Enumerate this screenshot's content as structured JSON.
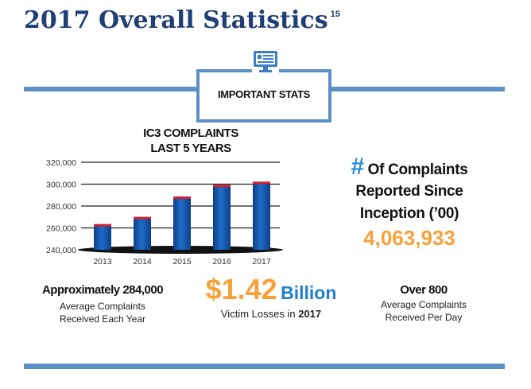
{
  "title": "2017 Overall Statistics",
  "footnote": "15",
  "stats_label": "IMPORTANT STATS",
  "chart_title": [
    "IC3 COMPLAINTS",
    "LAST 5 YEARS"
  ],
  "chart_data": {
    "type": "bar",
    "categories": [
      "2013",
      "2014",
      "2015",
      "2016",
      "2017"
    ],
    "values": [
      262813,
      269422,
      288012,
      298728,
      301580
    ],
    "ylim": [
      240000,
      320000
    ],
    "yticks": [
      "240,000",
      "260,000",
      "280,000",
      "300,000",
      "320,000"
    ],
    "bar_color": "#1f6cc9",
    "cap_color": "#d21f2f",
    "grid": true
  },
  "right": {
    "hash": "#",
    "line1": "Of Complaints",
    "line2": "Reported Since",
    "line3": "Inception (’00)",
    "number": "4,063,933"
  },
  "left_stat": {
    "head": "Approximately 284,000",
    "sub1": "Average Complaints",
    "sub2": "Received Each Year"
  },
  "money": {
    "number": "$1.42",
    "word": "Billion",
    "sub_prefix": "Victim Losses in",
    "sub_year": "2017"
  },
  "right_stat": {
    "head": "Over 800",
    "sub1": "Average Complaints",
    "sub2": "Received Per Day"
  },
  "colors": {
    "title": "#1f3f76",
    "rule": "#5b8fc8",
    "orange": "#f7a13a",
    "blue": "#1f7fd0"
  }
}
